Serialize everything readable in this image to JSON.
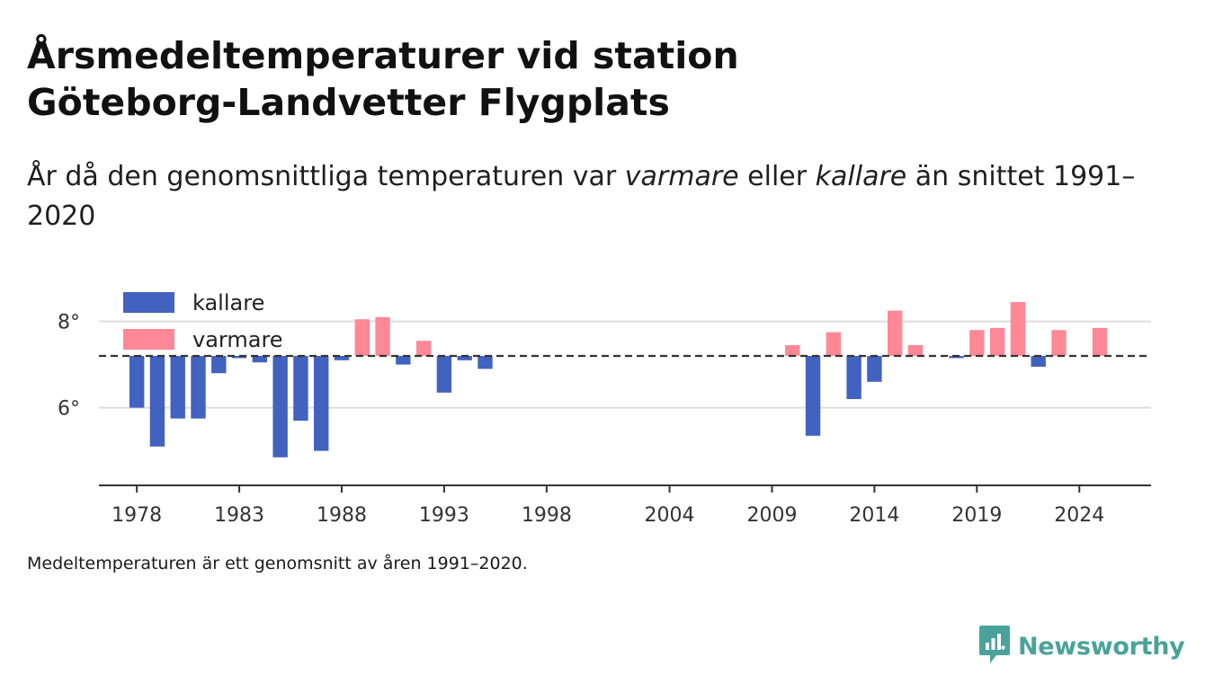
{
  "title_line1": "Årsmedeltemperaturer vid station",
  "title_line2": "Göteborg-Landvetter Flygplats",
  "subtitle": {
    "part1": "År då den genomsnittliga temperaturen var ",
    "em1": "varmare",
    "part2": " eller ",
    "em2": "kallare",
    "part3": " än snittet 1991–2020"
  },
  "footnote": "Medeltemperaturen är ett genomsnitt av åren 1991–2020.",
  "logo": {
    "text": "Newsworthy",
    "icon": "newsworthy-chart-icon",
    "color": "#4aa39a"
  },
  "colors": {
    "colder": "#4262bf",
    "warmer": "#ff8896",
    "mean_line": "#333333",
    "grid": "#dddddd"
  },
  "chart_data": {
    "type": "bar",
    "baseline": 7.2,
    "ylim": [
      4.2,
      9.2
    ],
    "yticks": [
      6,
      8
    ],
    "ytick_labels": [
      "6°",
      "8°"
    ],
    "xticks": [
      1978,
      1983,
      1988,
      1993,
      1998,
      2004,
      2009,
      2014,
      2019,
      2024
    ],
    "legend": [
      {
        "label": "kallare",
        "key": "colder"
      },
      {
        "label": "varmare",
        "key": "warmer"
      }
    ],
    "legend_position": "top-left",
    "data": [
      {
        "x": 1978,
        "y": 6.0
      },
      {
        "x": 1979,
        "y": 5.1
      },
      {
        "x": 1980,
        "y": 5.75
      },
      {
        "x": 1981,
        "y": 5.75
      },
      {
        "x": 1982,
        "y": 6.8
      },
      {
        "x": 1983,
        "y": 7.15
      },
      {
        "x": 1984,
        "y": 7.05
      },
      {
        "x": 1985,
        "y": 4.85
      },
      {
        "x": 1986,
        "y": 5.7
      },
      {
        "x": 1987,
        "y": 5.0
      },
      {
        "x": 1988,
        "y": 7.1
      },
      {
        "x": 1989,
        "y": 8.05
      },
      {
        "x": 1990,
        "y": 8.1
      },
      {
        "x": 1991,
        "y": 7.0
      },
      {
        "x": 1992,
        "y": 7.55
      },
      {
        "x": 1993,
        "y": 6.35
      },
      {
        "x": 1994,
        "y": 7.1
      },
      {
        "x": 1995,
        "y": 6.9
      },
      {
        "x": 2010,
        "y": 7.45
      },
      {
        "x": 2011,
        "y": 5.35
      },
      {
        "x": 2012,
        "y": 7.75
      },
      {
        "x": 2013,
        "y": 6.2
      },
      {
        "x": 2014,
        "y": 6.6
      },
      {
        "x": 2015,
        "y": 8.25
      },
      {
        "x": 2016,
        "y": 7.45
      },
      {
        "x": 2018,
        "y": 7.15
      },
      {
        "x": 2019,
        "y": 7.8
      },
      {
        "x": 2020,
        "y": 7.85
      },
      {
        "x": 2021,
        "y": 8.45
      },
      {
        "x": 2022,
        "y": 6.95
      },
      {
        "x": 2023,
        "y": 7.8
      },
      {
        "x": 2025,
        "y": 7.85
      }
    ]
  }
}
